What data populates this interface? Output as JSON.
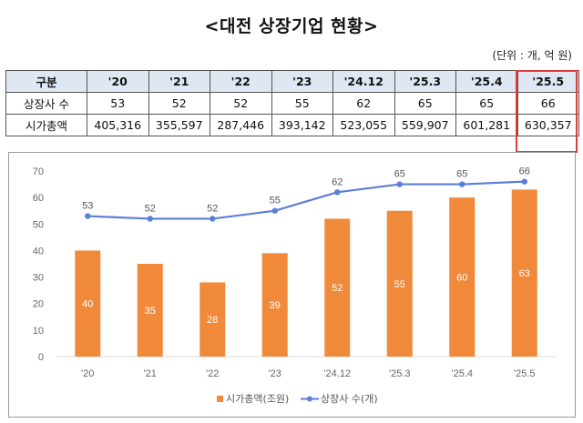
{
  "title": "<대전 상장기업 현황>",
  "unit": "(단위 : 개, 억 원)",
  "table": {
    "header_label": "구분",
    "columns": [
      "'20",
      "'21",
      "'22",
      "'23",
      "'24.12",
      "'25.3",
      "'25.4",
      "'25.5"
    ],
    "rows": [
      {
        "label": "상장사 수",
        "values": [
          "53",
          "52",
          "52",
          "55",
          "62",
          "65",
          "65",
          "66"
        ]
      },
      {
        "label": "시가총액",
        "values": [
          "405,316",
          "355,597",
          "287,446",
          "393,142",
          "523,055",
          "559,907",
          "601,281",
          "630,357"
        ]
      }
    ],
    "highlight_color": "#e23b3b"
  },
  "chart_data": {
    "type": "bar",
    "categories": [
      "'20",
      "'21",
      "'22",
      "'23",
      "'24.12",
      "'25.3",
      "'25.4",
      "'25.5"
    ],
    "series": [
      {
        "name": "시가총액(조원)",
        "kind": "bar",
        "color": "#f08a3a",
        "values": [
          40,
          35,
          28,
          39,
          52,
          55,
          60,
          63
        ]
      },
      {
        "name": "상장사 수(개)",
        "kind": "line",
        "color": "#5b7fd6",
        "values": [
          53,
          52,
          52,
          55,
          62,
          65,
          65,
          66
        ]
      }
    ],
    "ylim": [
      0,
      70
    ],
    "yticks": [
      0,
      10,
      20,
      30,
      40,
      50,
      60,
      70
    ],
    "grid": false,
    "legend": "bottom"
  }
}
